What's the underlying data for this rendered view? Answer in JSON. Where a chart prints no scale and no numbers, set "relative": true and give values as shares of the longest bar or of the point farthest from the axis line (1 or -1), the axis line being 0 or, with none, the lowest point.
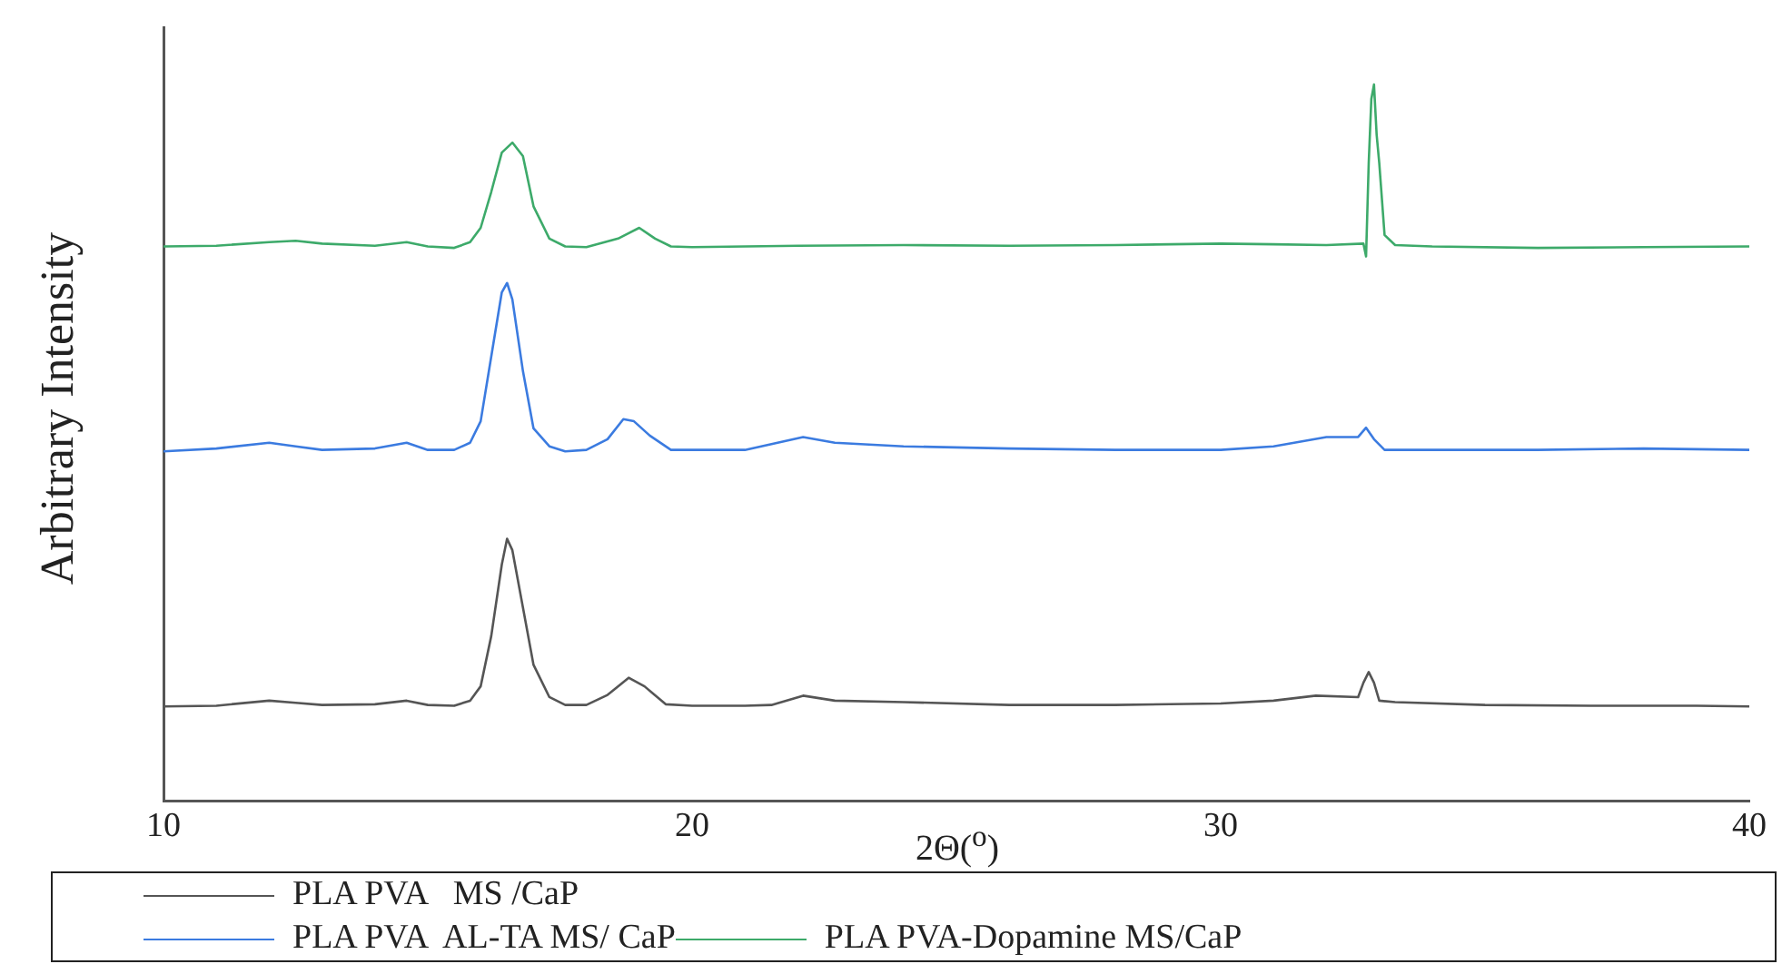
{
  "chart_data": {
    "type": "line",
    "relative": true,
    "xlabel": "2Θ($^{o}$)",
    "ylabel": "Arbitrary Intensity",
    "xlim": [
      10,
      40
    ],
    "xticks": [
      10,
      20,
      30,
      40
    ],
    "grid": false,
    "legend": "bottom",
    "marker": "none",
    "line_style": "solid",
    "series": [
      {
        "name": "PLA PVA   MS /CaP",
        "color": "#555555",
        "x": [
          10,
          11,
          12,
          12.5,
          13,
          14,
          14.6,
          15,
          15.5,
          15.8,
          16.0,
          16.2,
          16.4,
          16.5,
          16.6,
          16.8,
          17.0,
          17.3,
          17.6,
          18,
          18.4,
          18.8,
          19.1,
          19.5,
          20,
          21,
          21.5,
          22.1,
          22.7,
          24,
          26,
          28,
          30,
          31,
          31.8,
          32.6,
          32.7,
          32.8,
          32.9,
          33.0,
          33.3,
          35,
          37,
          39,
          40
        ],
        "values": [
          0.132,
          0.133,
          0.14,
          0.137,
          0.134,
          0.135,
          0.14,
          0.134,
          0.133,
          0.14,
          0.16,
          0.23,
          0.33,
          0.366,
          0.35,
          0.27,
          0.19,
          0.145,
          0.134,
          0.134,
          0.148,
          0.172,
          0.16,
          0.135,
          0.133,
          0.133,
          0.134,
          0.147,
          0.14,
          0.138,
          0.134,
          0.134,
          0.136,
          0.14,
          0.147,
          0.145,
          0.165,
          0.18,
          0.165,
          0.14,
          0.138,
          0.134,
          0.133,
          0.133,
          0.132
        ]
      },
      {
        "name": "PLA PVA  AL-TA MS/ CaP",
        "color": "#3b7be0",
        "x": [
          10,
          11,
          12,
          12.5,
          13,
          14,
          14.6,
          15,
          15.5,
          15.8,
          16.0,
          16.2,
          16.4,
          16.5,
          16.6,
          16.8,
          17.0,
          17.3,
          17.6,
          18,
          18.4,
          18.7,
          18.9,
          19.2,
          19.6,
          20,
          21,
          22.1,
          22.7,
          24,
          26,
          28,
          30,
          31,
          32,
          32.6,
          32.75,
          32.9,
          33.1,
          34,
          36,
          38,
          40
        ],
        "values": [
          0.488,
          0.492,
          0.5,
          0.495,
          0.49,
          0.492,
          0.5,
          0.49,
          0.49,
          0.5,
          0.53,
          0.62,
          0.71,
          0.723,
          0.7,
          0.6,
          0.52,
          0.495,
          0.488,
          0.49,
          0.505,
          0.533,
          0.53,
          0.51,
          0.49,
          0.49,
          0.49,
          0.508,
          0.5,
          0.495,
          0.492,
          0.49,
          0.49,
          0.495,
          0.508,
          0.508,
          0.521,
          0.505,
          0.49,
          0.49,
          0.49,
          0.492,
          0.49
        ]
      },
      {
        "name": "PLA PVA-Dopamine MS/CaP",
        "color": "#3daa6a",
        "x": [
          10,
          11,
          12,
          12.5,
          13,
          14,
          14.6,
          15,
          15.5,
          15.8,
          16.0,
          16.2,
          16.4,
          16.6,
          16.8,
          17.0,
          17.3,
          17.6,
          18,
          18.6,
          19.0,
          19.3,
          19.6,
          20,
          21,
          22,
          24,
          26,
          28,
          30,
          31,
          32,
          32.7,
          32.75,
          32.8,
          32.85,
          32.9,
          32.95,
          33.0,
          33.1,
          33.3,
          34,
          36,
          38,
          40
        ],
        "values": [
          0.774,
          0.775,
          0.78,
          0.782,
          0.778,
          0.775,
          0.78,
          0.774,
          0.772,
          0.78,
          0.8,
          0.85,
          0.905,
          0.919,
          0.9,
          0.83,
          0.785,
          0.774,
          0.773,
          0.785,
          0.8,
          0.785,
          0.774,
          0.773,
          0.774,
          0.775,
          0.776,
          0.775,
          0.776,
          0.778,
          0.777,
          0.776,
          0.778,
          0.76,
          0.89,
          0.98,
          1.0,
          0.93,
          0.89,
          0.79,
          0.776,
          0.774,
          0.772,
          0.773,
          0.774
        ]
      }
    ]
  }
}
